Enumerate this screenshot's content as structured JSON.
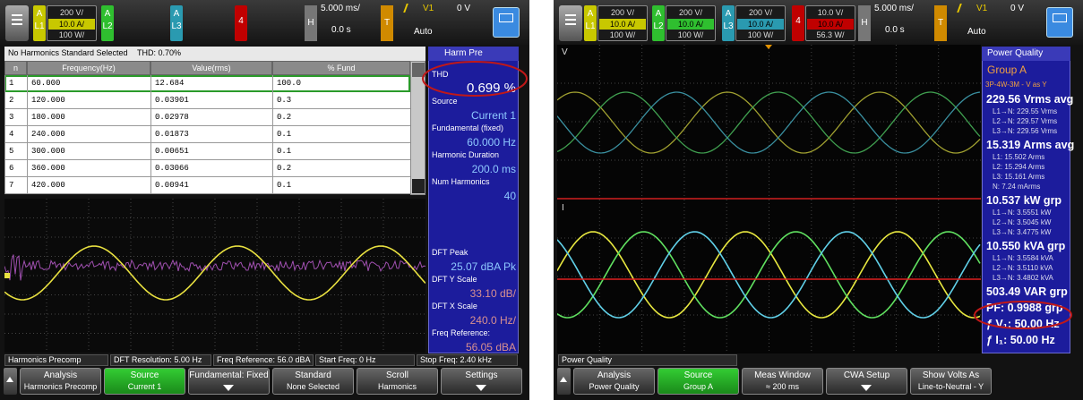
{
  "left": {
    "channels": [
      {
        "name": "A",
        "line": "L1",
        "scales": [
          "200 V/",
          "10.0 A/",
          "100 W/"
        ]
      },
      {
        "name": "A",
        "line": "L2"
      },
      {
        "name": "A",
        "line": "L3"
      },
      {
        "line": "4"
      }
    ],
    "horizontal": {
      "label": "H",
      "scale": "5.000 ms/",
      "position": "0.0 s"
    },
    "trigger": {
      "label": "T",
      "source": "V1",
      "level": "0 V",
      "mode": "Auto"
    },
    "table": {
      "title": "No Harmonics Standard Selected",
      "thd": "THD: 0.70%",
      "columns": [
        "n",
        "Frequency(Hz)",
        "Value(rms)",
        "% Fund"
      ],
      "rows": [
        [
          "1",
          "60.000",
          "12.684",
          "100.0"
        ],
        [
          "2",
          "120.000",
          "0.03901",
          "0.3"
        ],
        [
          "3",
          "180.000",
          "0.02978",
          "0.2"
        ],
        [
          "4",
          "240.000",
          "0.01873",
          "0.1"
        ],
        [
          "5",
          "300.000",
          "0.00651",
          "0.1"
        ],
        [
          "6",
          "360.000",
          "0.03066",
          "0.2"
        ],
        [
          "7",
          "420.000",
          "0.00941",
          "0.1"
        ]
      ]
    },
    "side": {
      "title": "Harm Pre",
      "items": [
        {
          "label": "THD",
          "value": "0.699 %"
        },
        {
          "label": "Source",
          "value": "Current 1"
        },
        {
          "label": "Fundamental (fixed)",
          "value": "60.000 Hz"
        },
        {
          "label": "Harmonic Duration",
          "value": "200.0 ms"
        },
        {
          "label": "Num Harmonics",
          "value": "40"
        },
        {
          "label": "DFT Peak",
          "value": "25.07 dBA Pk"
        },
        {
          "label": "DFT Y Scale",
          "value": "33.10 dB/"
        },
        {
          "label": "DFT X Scale",
          "value": "240.0 Hz/"
        },
        {
          "label": "Freq Reference:",
          "value": "56.05 dBA"
        }
      ]
    },
    "status": [
      "Harmonics Precomp",
      "DFT Resolution: 5.00 Hz",
      "Freq Reference: 56.0 dBA",
      "Start Freq: 0 Hz",
      "Stop Freq: 2.40 kHz"
    ],
    "softkeys": [
      {
        "title": "Analysis",
        "value": "Harmonics Precomp"
      },
      {
        "title": "Source",
        "value": "Current 1"
      },
      {
        "title": "Fundamental: Fixed"
      },
      {
        "title": "Standard",
        "value": "None Selected"
      },
      {
        "title": "Scroll",
        "value": "Harmonics"
      },
      {
        "title": "Settings"
      }
    ]
  },
  "right": {
    "channels": [
      {
        "name": "A",
        "line": "L1",
        "scales": [
          "200 V/",
          "10.0 A/",
          "100 W/"
        ]
      },
      {
        "name": "A",
        "line": "L2",
        "scales": [
          "200 V/",
          "10.0 A/",
          "100 W/"
        ]
      },
      {
        "name": "A",
        "line": "L3",
        "scales": [
          "200 V/",
          "10.0 A/",
          "100 W/"
        ]
      },
      {
        "line": "4",
        "scales": [
          "10.0 V/",
          "10.0 A/",
          "56.3 W/"
        ]
      }
    ],
    "horizontal": {
      "label": "H",
      "scale": "5.000 ms/",
      "position": "0.0 s"
    },
    "trigger": {
      "label": "T",
      "source": "V1",
      "level": "0 V",
      "mode": "Auto"
    },
    "traces": [
      "V",
      "I"
    ],
    "side": {
      "title": "Power Quality",
      "group": "Group A",
      "config": "3P-4W-3M - V as Y",
      "readings": [
        {
          "main": "229.56 Vrms avg",
          "lines": [
            "L1→N: 229.55 Vrms",
            "L2→N: 229.57 Vrms",
            "L3→N: 229.56 Vrms"
          ]
        },
        {
          "main": "15.319 Arms avg",
          "lines": [
            "L1: 15.502 Arms",
            "L2: 15.294 Arms",
            "L3: 15.161 Arms",
            "N: 7.24 mArms"
          ]
        },
        {
          "main": "10.537 kW grp",
          "lines": [
            "L1→N: 3.5551 kW",
            "L2→N: 3.5045 kW",
            "L3→N: 3.4775 kW"
          ]
        },
        {
          "main": "10.550 kVA grp",
          "lines": [
            "L1→N: 3.5584 kVA",
            "L2→N: 3.5110 kVA",
            "L3→N: 3.4802 kVA"
          ]
        },
        {
          "main": "503.49 VAR grp"
        },
        {
          "main": "PF: 0.9988 grp"
        },
        {
          "main": "ƒ V₁: 50.00 Hz"
        },
        {
          "main": "ƒ I₁: 50.00 Hz"
        }
      ]
    },
    "status": [
      "Power Quality"
    ],
    "softkeys": [
      {
        "title": "Analysis",
        "value": "Power Quality"
      },
      {
        "title": "Source",
        "value": "Group A"
      },
      {
        "title": "Meas Window",
        "value": "≈ 200 ms"
      },
      {
        "title": "CWA Setup"
      },
      {
        "title": "Show Volts As",
        "value": "Line-to-Neutral - Y"
      }
    ]
  }
}
